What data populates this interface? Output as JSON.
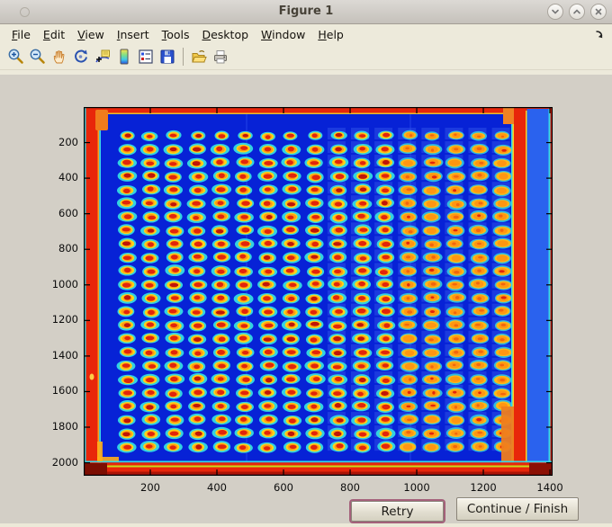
{
  "window": {
    "title": "Figure 1",
    "controls": [
      "shade",
      "unshade",
      "close"
    ]
  },
  "menu": {
    "items": [
      "File",
      "Edit",
      "View",
      "Insert",
      "Tools",
      "Desktop",
      "Window",
      "Help"
    ]
  },
  "toolbar": {
    "icons": [
      "zoom-in",
      "zoom-out",
      "pan",
      "rotate-3d",
      "data-cursor",
      "insert-colorbar",
      "insert-legend",
      "save-figure",
      "open-file",
      "print-figure"
    ]
  },
  "figure": {
    "axes": {
      "x_ticks": [
        200,
        400,
        600,
        800,
        1000,
        1200,
        1400
      ],
      "y_ticks": [
        200,
        400,
        600,
        800,
        1000,
        1200,
        1400,
        1600,
        1800,
        2000
      ],
      "x_range": [
        0,
        1408
      ],
      "y_range": [
        0,
        2073
      ]
    },
    "image": {
      "type": "pseudocolor-image",
      "colormap": "jet",
      "content": "scanned microtiter-plate / spotted array: grid of assay spots on deep blue field with hot red plate edges",
      "background_color": "#0722d6",
      "edge_color": "#e8260a",
      "spot_grid": {
        "rows": 24,
        "cols": 17,
        "halo_color": "#32d2e2",
        "ring_color": "#ffd318",
        "ring_color_right": "#ffb818",
        "mid_color": "#ff9212",
        "center_color": "#e2250a",
        "center_color_right": "#f2660c"
      }
    }
  },
  "buttons": {
    "retry_label": "Retry",
    "continue_label": "Continue / Finish"
  },
  "colors": {
    "chrome_beige": "#edeadb",
    "canvas_gray": "#d3cfc6",
    "focus_ring": "#a4607a"
  }
}
